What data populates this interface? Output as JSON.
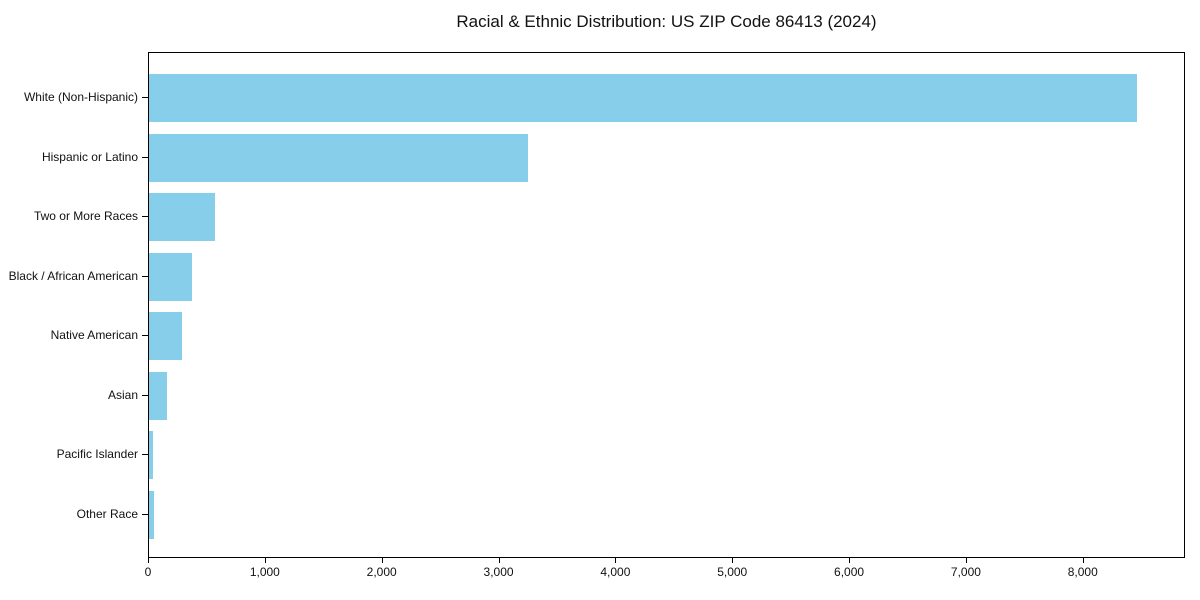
{
  "figure": {
    "background": "#ffffff",
    "frame_color": "#000000",
    "text_color": "#111111"
  },
  "chart_data": {
    "type": "bar",
    "orientation": "horizontal",
    "title": "Racial & Ethnic Distribution: US ZIP Code 86413 (2024)",
    "categories": [
      "White (Non-Hispanic)",
      "Hispanic or Latino",
      "Two or More Races",
      "Black / African American",
      "Native American",
      "Asian",
      "Pacific Islander",
      "Other Race"
    ],
    "values": [
      8455,
      3240,
      565,
      370,
      285,
      155,
      38,
      45
    ],
    "bar_color": "#87CEEB",
    "xlabel": "",
    "ylabel": "",
    "xlim": [
      0,
      8875
    ],
    "x_ticks": [
      0,
      1000,
      2000,
      3000,
      4000,
      5000,
      6000,
      7000,
      8000
    ],
    "x_tick_labels": [
      "0",
      "1,000",
      "2,000",
      "3,000",
      "4,000",
      "5,000",
      "6,000",
      "7,000",
      "8,000"
    ],
    "grid": false,
    "legend_position": "none",
    "value_axis": "x",
    "category_order": "top-to-bottom"
  }
}
